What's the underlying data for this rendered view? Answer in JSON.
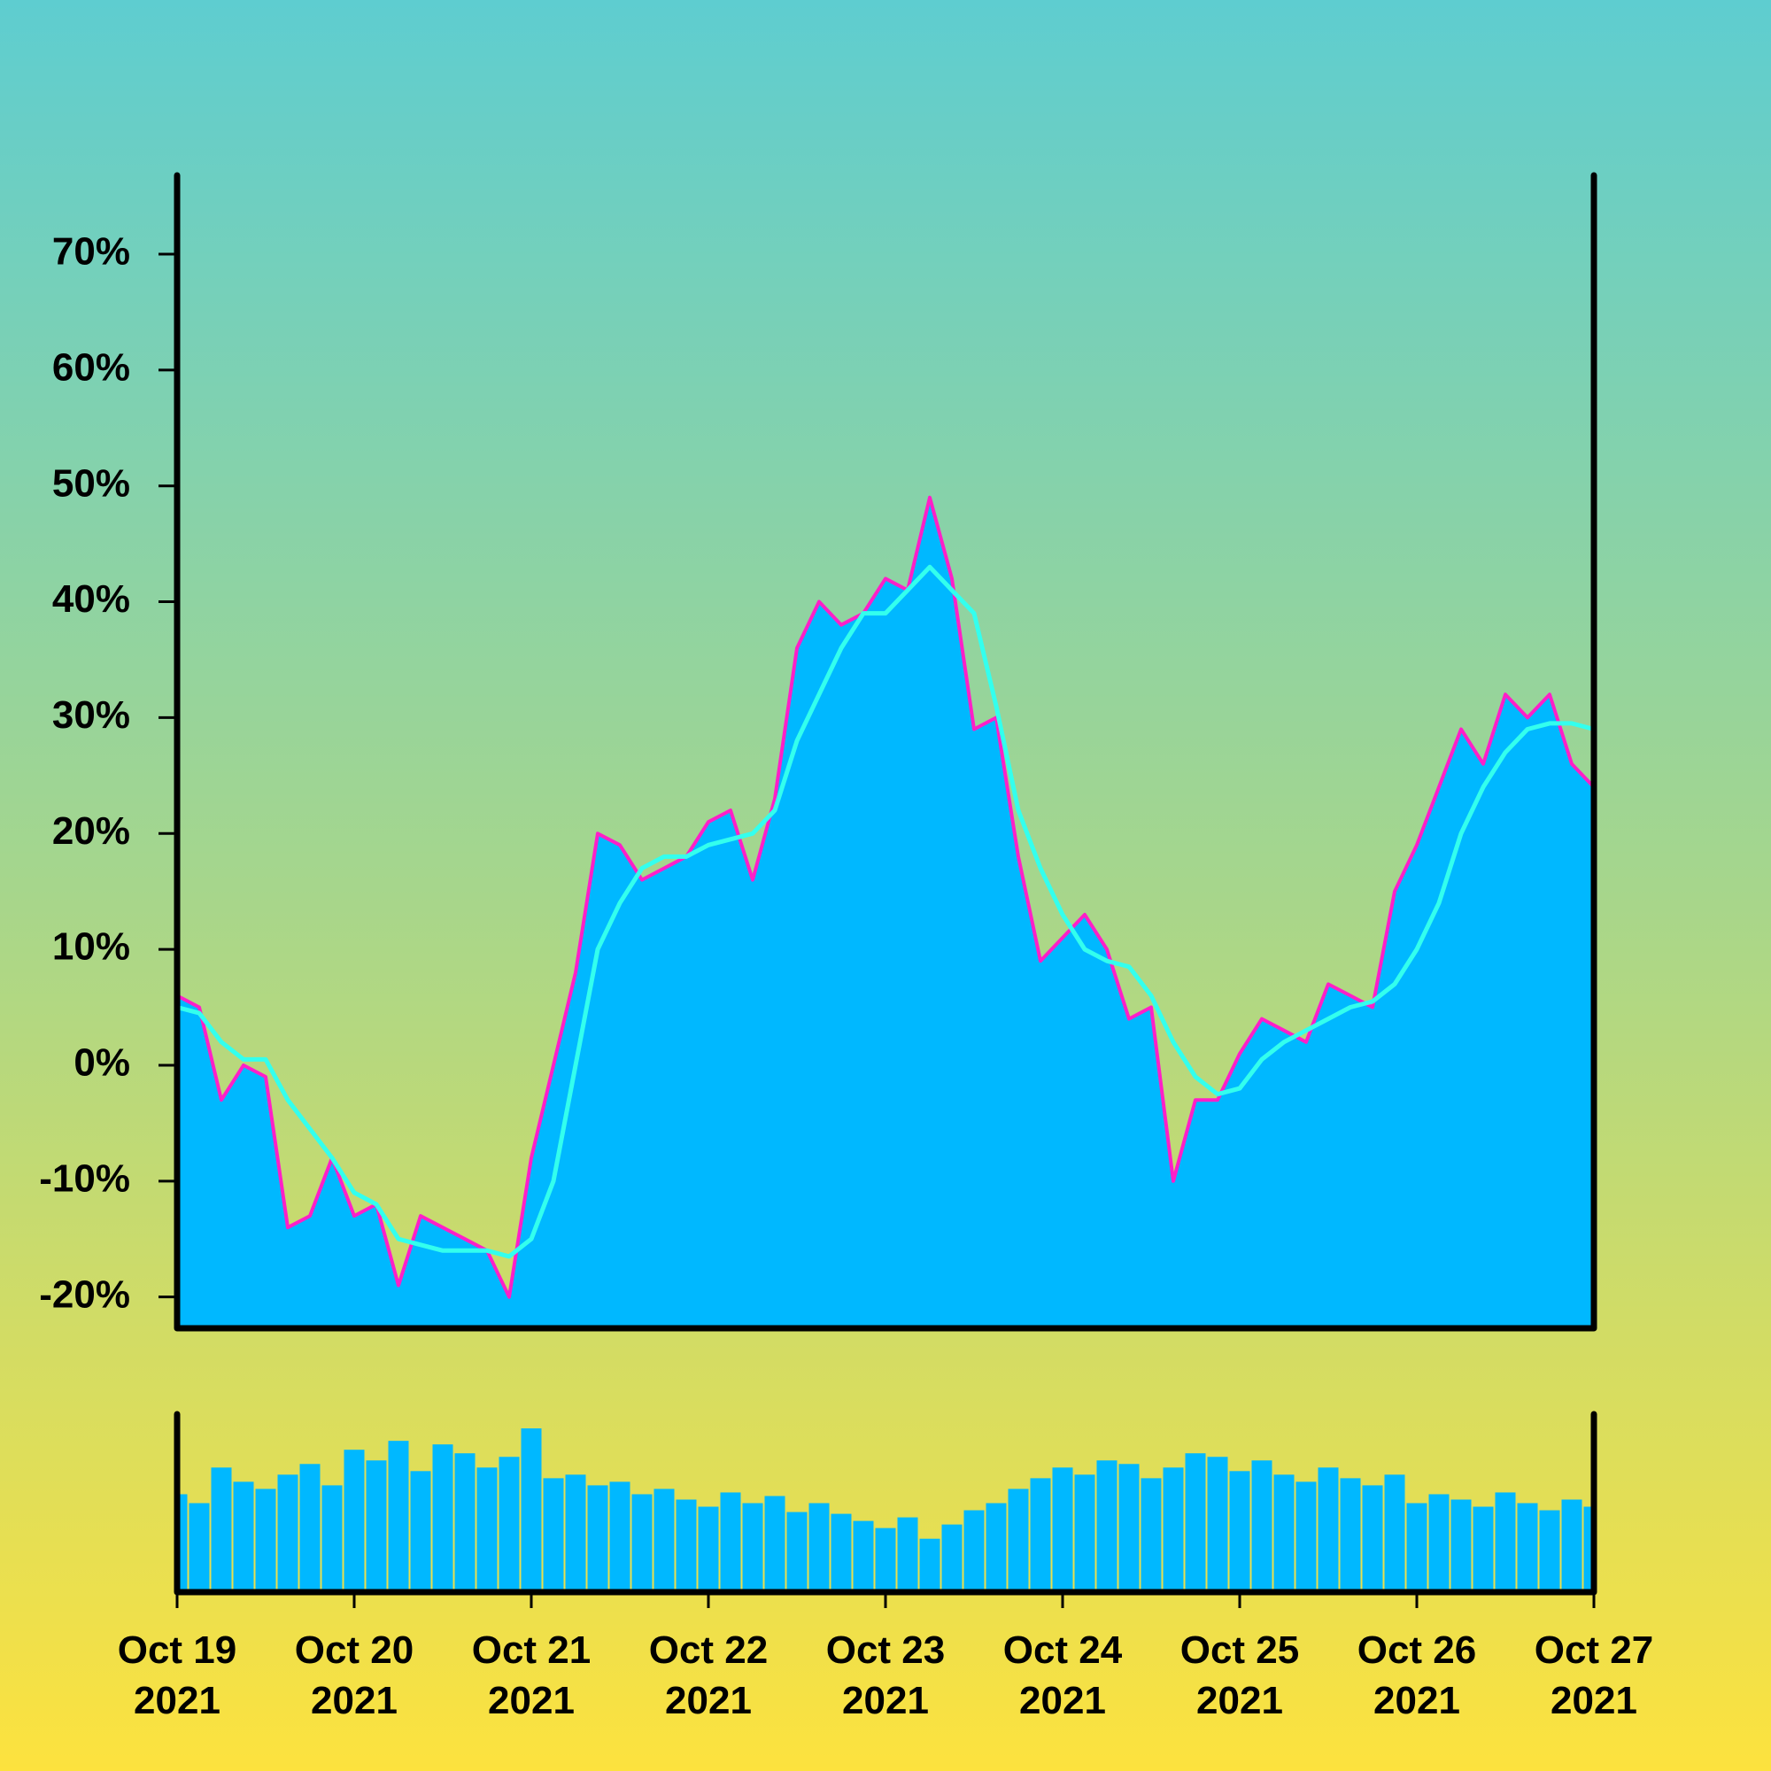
{
  "chart_data": [
    {
      "type": "area",
      "x": [
        "2021-10-19T00:00",
        "2021-10-19T03:00",
        "2021-10-19T06:00",
        "2021-10-19T09:00",
        "2021-10-19T12:00",
        "2021-10-19T15:00",
        "2021-10-19T18:00",
        "2021-10-19T21:00",
        "2021-10-20T00:00",
        "2021-10-20T03:00",
        "2021-10-20T06:00",
        "2021-10-20T09:00",
        "2021-10-20T12:00",
        "2021-10-20T15:00",
        "2021-10-20T18:00",
        "2021-10-20T21:00",
        "2021-10-21T00:00",
        "2021-10-21T03:00",
        "2021-10-21T06:00",
        "2021-10-21T09:00",
        "2021-10-21T12:00",
        "2021-10-21T15:00",
        "2021-10-21T18:00",
        "2021-10-21T21:00",
        "2021-10-22T00:00",
        "2021-10-22T03:00",
        "2021-10-22T06:00",
        "2021-10-22T09:00",
        "2021-10-22T12:00",
        "2021-10-22T15:00",
        "2021-10-22T18:00",
        "2021-10-22T21:00",
        "2021-10-23T00:00",
        "2021-10-23T03:00",
        "2021-10-23T06:00",
        "2021-10-23T09:00",
        "2021-10-23T12:00",
        "2021-10-23T15:00",
        "2021-10-23T18:00",
        "2021-10-23T21:00",
        "2021-10-24T00:00",
        "2021-10-24T03:00",
        "2021-10-24T06:00",
        "2021-10-24T09:00",
        "2021-10-24T12:00",
        "2021-10-24T15:00",
        "2021-10-24T18:00",
        "2021-10-24T21:00",
        "2021-10-25T00:00",
        "2021-10-25T03:00",
        "2021-10-25T06:00",
        "2021-10-25T09:00",
        "2021-10-25T12:00",
        "2021-10-25T15:00",
        "2021-10-25T18:00",
        "2021-10-25T21:00",
        "2021-10-26T00:00",
        "2021-10-26T03:00",
        "2021-10-26T06:00",
        "2021-10-26T09:00",
        "2021-10-26T12:00",
        "2021-10-26T15:00",
        "2021-10-26T18:00",
        "2021-10-26T21:00",
        "2021-10-27T00:00"
      ],
      "series": [
        {
          "color": "#ff1fc8",
          "fill": "#00b8ff",
          "values": [
            6,
            5,
            -3,
            0,
            -1,
            -14,
            -13,
            -8,
            -13,
            -12,
            -19,
            -13,
            -14,
            -15,
            -16,
            -20,
            -8,
            0,
            8,
            20,
            19,
            16,
            17,
            18,
            21,
            22,
            16,
            23,
            36,
            40,
            38,
            39,
            42,
            41,
            49,
            42,
            29,
            30,
            18,
            9,
            11,
            13,
            10,
            4,
            5,
            -10,
            -3,
            -3,
            1,
            4,
            3,
            2,
            7,
            6,
            5,
            15,
            19,
            24,
            29,
            26,
            32,
            30,
            32,
            26,
            24
          ]
        },
        {
          "color": "#33ffee",
          "values": [
            5,
            4.5,
            2,
            0.5,
            0.5,
            -3,
            -5.5,
            -8,
            -11,
            -12,
            -15,
            -15.5,
            -16,
            -16,
            -16,
            -16.5,
            -15,
            -10,
            0,
            10,
            14,
            17,
            18,
            18,
            19,
            19.5,
            20,
            22,
            28,
            32,
            36,
            39,
            39,
            41,
            43,
            41,
            39,
            31,
            22,
            17,
            13,
            10,
            9,
            8.5,
            6,
            2,
            -1,
            -2.5,
            -2,
            0.5,
            2,
            3,
            4,
            5,
            5.5,
            7,
            10,
            14,
            20,
            24,
            27,
            29,
            29.5,
            29.5,
            29
          ]
        }
      ],
      "xlim": [
        "2021-10-19T00:00",
        "2021-10-27T00:00"
      ],
      "ylim": [
        -22.7,
        76.8
      ],
      "yticks": [
        {
          "value": -20,
          "label": "-20%"
        },
        {
          "value": -10,
          "label": "-10%"
        },
        {
          "value": 0,
          "label": "0%"
        },
        {
          "value": 10,
          "label": "10%"
        },
        {
          "value": 20,
          "label": "20%"
        },
        {
          "value": 30,
          "label": "30%"
        },
        {
          "value": 40,
          "label": "40%"
        },
        {
          "value": 50,
          "label": "50%"
        },
        {
          "value": 60,
          "label": "60%"
        },
        {
          "value": 70,
          "label": "70%"
        }
      ]
    },
    {
      "type": "bar",
      "color": "#00b8ff",
      "values": [
        55,
        50,
        70,
        62,
        58,
        66,
        72,
        60,
        80,
        74,
        85,
        68,
        83,
        78,
        70,
        76,
        92,
        64,
        66,
        60,
        62,
        55,
        58,
        52,
        48,
        56,
        50,
        54,
        45,
        50,
        44,
        40,
        36,
        42,
        30,
        38,
        46,
        50,
        58,
        64,
        70,
        66,
        74,
        72,
        64,
        70,
        78,
        76,
        68,
        74,
        66,
        62,
        70,
        64,
        60,
        66,
        50,
        55,
        52,
        48,
        56,
        50,
        46,
        52,
        48
      ],
      "xlim": [
        "2021-10-19T00:00",
        "2021-10-27T00:00"
      ],
      "ylim": [
        0,
        100
      ],
      "xticks": [
        {
          "value": "2021-10-19",
          "label": "Oct 19 2021"
        },
        {
          "value": "2021-10-20",
          "label": "Oct 20 2021"
        },
        {
          "value": "2021-10-21",
          "label": "Oct 21 2021"
        },
        {
          "value": "2021-10-22",
          "label": "Oct 22 2021"
        },
        {
          "value": "2021-10-23",
          "label": "Oct 23 2021"
        },
        {
          "value": "2021-10-24",
          "label": "Oct 24 2021"
        },
        {
          "value": "2021-10-25",
          "label": "Oct 25 2021"
        },
        {
          "value": "2021-10-26",
          "label": "Oct 26 2021"
        },
        {
          "value": "2021-10-27",
          "label": "Oct 27 2021"
        }
      ]
    }
  ]
}
